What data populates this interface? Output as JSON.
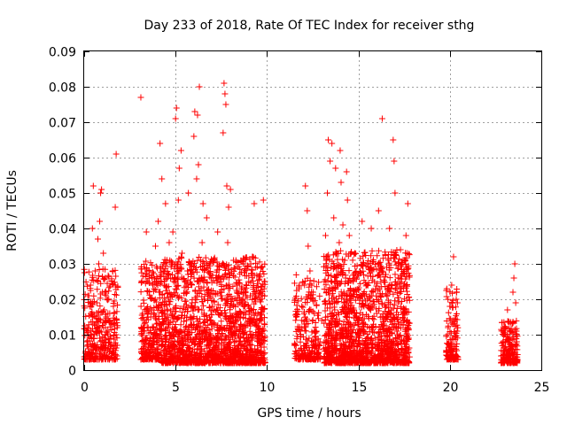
{
  "chart_data": {
    "type": "scatter",
    "title": "Day 233 of 2018, Rate Of TEC Index for receiver sthg",
    "xlabel": "GPS time / hours",
    "ylabel": "ROTI / TECUs",
    "xlim": [
      0,
      25
    ],
    "ylim": [
      0,
      0.09
    ],
    "x_ticks": [
      0,
      5,
      10,
      15,
      20,
      25
    ],
    "y_ticks": [
      0,
      0.01,
      0.02,
      0.03,
      0.04,
      0.05,
      0.06,
      0.07,
      0.08,
      0.09
    ],
    "x_tick_labels": [
      "0",
      "5",
      "10",
      "15",
      "20",
      "25"
    ],
    "y_tick_labels": [
      "0",
      "0.01",
      "0.02",
      "0.03",
      "0.04",
      "0.05",
      "0.06",
      "0.07",
      "0.08",
      "0.09"
    ],
    "grid": true,
    "marker": "+",
    "color": "#ff0000",
    "series": [
      {
        "name": "ROTI",
        "points": [
          [
            0.1,
            0.004
          ],
          [
            0.15,
            0.008
          ],
          [
            0.2,
            0.012
          ],
          [
            0.2,
            0.021
          ],
          [
            0.25,
            0.006
          ],
          [
            0.3,
            0.018
          ],
          [
            0.35,
            0.01
          ],
          [
            0.35,
            0.024
          ],
          [
            0.4,
            0.005
          ],
          [
            0.45,
            0.015
          ],
          [
            0.45,
            0.04
          ],
          [
            0.5,
            0.009
          ],
          [
            0.5,
            0.052
          ],
          [
            0.55,
            0.003
          ],
          [
            0.55,
            0.013
          ],
          [
            0.6,
            0.007
          ],
          [
            0.6,
            0.028
          ],
          [
            0.65,
            0.011
          ],
          [
            0.7,
            0.004
          ],
          [
            0.7,
            0.019
          ],
          [
            0.75,
            0.025
          ],
          [
            0.75,
            0.037
          ],
          [
            0.8,
            0.006
          ],
          [
            0.8,
            0.03
          ],
          [
            0.85,
            0.009
          ],
          [
            0.85,
            0.042
          ],
          [
            0.9,
            0.014
          ],
          [
            0.9,
            0.05
          ],
          [
            0.95,
            0.003
          ],
          [
            0.95,
            0.051
          ],
          [
            1.0,
            0.008
          ],
          [
            1.0,
            0.022
          ],
          [
            1.05,
            0.012
          ],
          [
            1.05,
            0.033
          ],
          [
            1.1,
            0.005
          ],
          [
            1.1,
            0.017
          ],
          [
            1.15,
            0.01
          ],
          [
            1.15,
            0.026
          ],
          [
            1.2,
            0.007
          ],
          [
            1.2,
            0.015
          ],
          [
            1.25,
            0.004
          ],
          [
            1.25,
            0.02
          ],
          [
            1.3,
            0.011
          ],
          [
            1.35,
            0.006
          ],
          [
            1.4,
            0.016
          ],
          [
            1.45,
            0.009
          ],
          [
            1.5,
            0.013
          ],
          [
            1.55,
            0.005
          ],
          [
            1.6,
            0.018
          ],
          [
            1.65,
            0.007
          ],
          [
            1.7,
            0.024
          ],
          [
            1.7,
            0.046
          ],
          [
            1.75,
            0.01
          ],
          [
            1.75,
            0.061
          ],
          [
            1.8,
            0.004
          ],
          [
            1.8,
            0.012
          ],
          [
            3.1,
            0.077
          ],
          [
            3.2,
            0.016
          ],
          [
            3.3,
            0.008
          ],
          [
            3.4,
            0.039
          ],
          [
            3.5,
            0.012
          ],
          [
            3.55,
            0.028
          ],
          [
            3.6,
            0.005
          ],
          [
            3.7,
            0.017
          ],
          [
            3.75,
            0.024
          ],
          [
            3.8,
            0.009
          ],
          [
            3.9,
            0.035
          ],
          [
            3.95,
            0.013
          ],
          [
            4.0,
            0.006
          ],
          [
            4.05,
            0.042
          ],
          [
            4.1,
            0.022
          ],
          [
            4.15,
            0.064
          ],
          [
            4.2,
            0.011
          ],
          [
            4.25,
            0.054
          ],
          [
            4.3,
            0.008
          ],
          [
            4.35,
            0.03
          ],
          [
            4.4,
            0.018
          ],
          [
            4.45,
            0.047
          ],
          [
            4.5,
            0.005
          ],
          [
            4.55,
            0.026
          ],
          [
            4.6,
            0.013
          ],
          [
            4.65,
            0.036
          ],
          [
            4.7,
            0.009
          ],
          [
            4.8,
            0.016
          ],
          [
            4.85,
            0.039
          ],
          [
            4.9,
            0.007
          ],
          [
            5.0,
            0.071
          ],
          [
            5.05,
            0.074
          ],
          [
            5.1,
            0.021
          ],
          [
            5.15,
            0.048
          ],
          [
            5.2,
            0.057
          ],
          [
            5.25,
            0.011
          ],
          [
            5.3,
            0.062
          ],
          [
            5.35,
            0.033
          ],
          [
            5.4,
            0.008
          ],
          [
            5.45,
            0.018
          ],
          [
            5.5,
            0.025
          ],
          [
            5.55,
            0.004
          ],
          [
            5.6,
            0.014
          ],
          [
            5.65,
            0.028
          ],
          [
            5.7,
            0.05
          ],
          [
            5.8,
            0.009
          ],
          [
            5.9,
            0.019
          ],
          [
            6.0,
            0.066
          ],
          [
            6.05,
            0.073
          ],
          [
            6.1,
            0.012
          ],
          [
            6.15,
            0.054
          ],
          [
            6.2,
            0.072
          ],
          [
            6.25,
            0.058
          ],
          [
            6.3,
            0.08
          ],
          [
            6.35,
            0.025
          ],
          [
            6.4,
            0.006
          ],
          [
            6.45,
            0.036
          ],
          [
            6.5,
            0.047
          ],
          [
            6.55,
            0.016
          ],
          [
            6.6,
            0.011
          ],
          [
            6.7,
            0.043
          ],
          [
            6.75,
            0.021
          ],
          [
            6.8,
            0.007
          ],
          [
            6.85,
            0.03
          ],
          [
            6.9,
            0.014
          ],
          [
            7.0,
            0.018
          ],
          [
            7.1,
            0.009
          ],
          [
            7.2,
            0.026
          ],
          [
            7.3,
            0.039
          ],
          [
            7.4,
            0.012
          ],
          [
            7.5,
            0.005
          ],
          [
            7.6,
            0.067
          ],
          [
            7.65,
            0.081
          ],
          [
            7.7,
            0.078
          ],
          [
            7.75,
            0.075
          ],
          [
            7.8,
            0.052
          ],
          [
            7.85,
            0.036
          ],
          [
            7.9,
            0.046
          ],
          [
            7.95,
            0.027
          ],
          [
            8.0,
            0.051
          ],
          [
            8.05,
            0.012
          ],
          [
            8.1,
            0.02
          ],
          [
            8.2,
            0.008
          ],
          [
            8.3,
            0.031
          ],
          [
            8.4,
            0.015
          ],
          [
            8.5,
            0.004
          ],
          [
            8.6,
            0.023
          ],
          [
            8.7,
            0.011
          ],
          [
            8.8,
            0.018
          ],
          [
            8.9,
            0.006
          ],
          [
            9.0,
            0.025
          ],
          [
            9.1,
            0.014
          ],
          [
            9.2,
            0.009
          ],
          [
            9.3,
            0.047
          ],
          [
            9.35,
            0.021
          ],
          [
            9.4,
            0.005
          ],
          [
            9.5,
            0.016
          ],
          [
            9.6,
            0.01
          ],
          [
            9.7,
            0.003
          ],
          [
            9.8,
            0.048
          ],
          [
            11.5,
            0.007
          ],
          [
            11.6,
            0.015
          ],
          [
            11.7,
            0.004
          ],
          [
            11.8,
            0.011
          ],
          [
            11.9,
            0.018
          ],
          [
            12.0,
            0.006
          ],
          [
            12.05,
            0.024
          ],
          [
            12.1,
            0.052
          ],
          [
            12.15,
            0.013
          ],
          [
            12.2,
            0.045
          ],
          [
            12.25,
            0.035
          ],
          [
            12.3,
            0.009
          ],
          [
            12.35,
            0.028
          ],
          [
            12.4,
            0.017
          ],
          [
            12.5,
            0.02
          ],
          [
            12.6,
            0.003
          ],
          [
            12.7,
            0.011
          ],
          [
            12.8,
            0.005
          ],
          [
            12.9,
            0.008
          ],
          [
            13.0,
            0.014
          ],
          [
            13.1,
            0.006
          ],
          [
            13.2,
            0.038
          ],
          [
            13.25,
            0.022
          ],
          [
            13.3,
            0.05
          ],
          [
            13.35,
            0.065
          ],
          [
            13.4,
            0.012
          ],
          [
            13.45,
            0.059
          ],
          [
            13.5,
            0.029
          ],
          [
            13.55,
            0.064
          ],
          [
            13.6,
            0.007
          ],
          [
            13.65,
            0.043
          ],
          [
            13.7,
            0.017
          ],
          [
            13.75,
            0.057
          ],
          [
            13.8,
            0.033
          ],
          [
            13.85,
            0.01
          ],
          [
            13.9,
            0.024
          ],
          [
            13.95,
            0.036
          ],
          [
            14.0,
            0.062
          ],
          [
            14.05,
            0.053
          ],
          [
            14.1,
            0.005
          ],
          [
            14.15,
            0.041
          ],
          [
            14.2,
            0.019
          ],
          [
            14.25,
            0.031
          ],
          [
            14.3,
            0.026
          ],
          [
            14.35,
            0.056
          ],
          [
            14.4,
            0.048
          ],
          [
            14.45,
            0.013
          ],
          [
            14.5,
            0.038
          ],
          [
            14.6,
            0.021
          ],
          [
            14.7,
            0.008
          ],
          [
            14.8,
            0.033
          ],
          [
            14.9,
            0.015
          ],
          [
            15.0,
            0.027
          ],
          [
            15.1,
            0.011
          ],
          [
            15.2,
            0.042
          ],
          [
            15.3,
            0.018
          ],
          [
            15.4,
            0.006
          ],
          [
            15.5,
            0.03
          ],
          [
            15.6,
            0.012
          ],
          [
            15.7,
            0.04
          ],
          [
            15.8,
            0.022
          ],
          [
            15.9,
            0.009
          ],
          [
            16.0,
            0.016
          ],
          [
            16.1,
            0.045
          ],
          [
            16.2,
            0.021
          ],
          [
            16.3,
            0.071
          ],
          [
            16.35,
            0.005
          ],
          [
            16.4,
            0.013
          ],
          [
            16.5,
            0.027
          ],
          [
            16.6,
            0.008
          ],
          [
            16.7,
            0.04
          ],
          [
            16.8,
            0.017
          ],
          [
            16.9,
            0.065
          ],
          [
            16.95,
            0.059
          ],
          [
            17.0,
            0.05
          ],
          [
            17.05,
            0.024
          ],
          [
            17.1,
            0.011
          ],
          [
            17.2,
            0.019
          ],
          [
            17.3,
            0.034
          ],
          [
            17.4,
            0.006
          ],
          [
            17.5,
            0.014
          ],
          [
            17.6,
            0.038
          ],
          [
            17.7,
            0.047
          ],
          [
            17.75,
            0.009
          ],
          [
            19.8,
            0.005
          ],
          [
            19.9,
            0.012
          ],
          [
            20.0,
            0.018
          ],
          [
            20.0,
            0.007
          ],
          [
            20.1,
            0.024
          ],
          [
            20.15,
            0.009
          ],
          [
            20.2,
            0.032
          ],
          [
            20.25,
            0.014
          ],
          [
            20.3,
            0.004
          ],
          [
            20.35,
            0.02
          ],
          [
            20.4,
            0.011
          ],
          [
            22.8,
            0.004
          ],
          [
            22.9,
            0.008
          ],
          [
            23.0,
            0.012
          ],
          [
            23.05,
            0.003
          ],
          [
            23.1,
            0.006
          ],
          [
            23.15,
            0.017
          ],
          [
            23.2,
            0.009
          ],
          [
            23.25,
            0.005
          ],
          [
            23.3,
            0.011
          ],
          [
            23.35,
            0.004
          ],
          [
            23.4,
            0.007
          ],
          [
            23.45,
            0.022
          ],
          [
            23.5,
            0.026
          ],
          [
            23.55,
            0.03
          ],
          [
            23.6,
            0.019
          ],
          [
            23.65,
            0.008
          ]
        ],
        "clusters": [
          {
            "x": [
              0.0,
              1.85
            ],
            "n": 300,
            "base": 0.003,
            "spread": 0.026
          },
          {
            "x": [
              3.1,
              4.2
            ],
            "n": 260,
            "base": 0.003,
            "spread": 0.028
          },
          {
            "x": [
              4.2,
              9.9
            ],
            "n": 1700,
            "base": 0.002,
            "spread": 0.03
          },
          {
            "x": [
              11.5,
              12.9
            ],
            "n": 220,
            "base": 0.003,
            "spread": 0.024
          },
          {
            "x": [
              13.1,
              17.8
            ],
            "n": 1500,
            "base": 0.002,
            "spread": 0.032
          },
          {
            "x": [
              19.8,
              20.45
            ],
            "n": 120,
            "base": 0.003,
            "spread": 0.02
          },
          {
            "x": [
              22.8,
              23.7
            ],
            "n": 180,
            "base": 0.002,
            "spread": 0.012
          }
        ]
      }
    ]
  }
}
